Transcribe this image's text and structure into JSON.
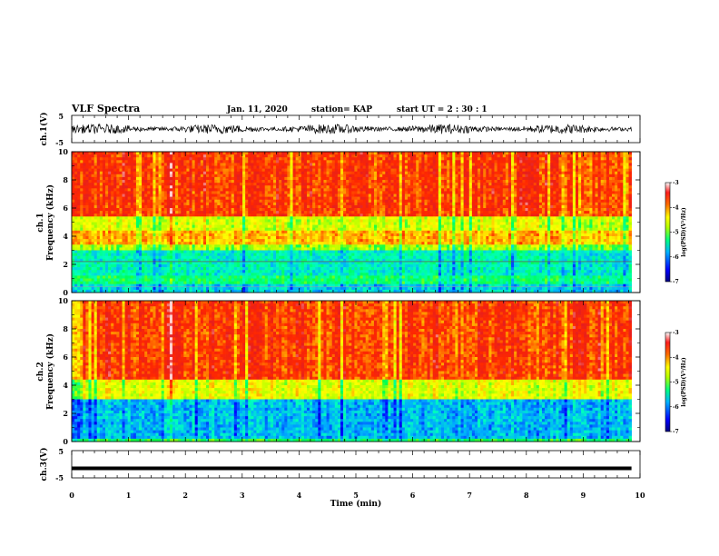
{
  "header": {
    "title": "VLF Spectra",
    "date": "Jan. 11, 2020",
    "station": "station= KAP",
    "start": "start  UT =   2 : 30 : 1"
  },
  "colors": {
    "colormap": [
      "#00007f",
      "#0000ff",
      "#00b4ff",
      "#00ffb0",
      "#00ff3c",
      "#b4ff00",
      "#ffff00",
      "#ffa000",
      "#ff2a00",
      "#e61e1e"
    ],
    "dominant_high": "#ff2a00",
    "dominant_mid": "#ffff00",
    "dominant_low": "#00ff80"
  },
  "chart_data": [
    {
      "type": "line",
      "name": "waveform-ch1",
      "ylabel": "ch.1(V)",
      "ylim": [
        -5,
        5
      ],
      "yticks": [
        "5",
        "-5"
      ],
      "xlim": [
        0,
        10
      ],
      "description_values": {
        "mean_v": 0,
        "amplitude_v_approx": 1.8
      }
    },
    {
      "type": "heatmap",
      "name": "spectrogram-ch1",
      "ylabel": "ch.1\nFrequency (kHz)",
      "ylim": [
        0,
        10
      ],
      "yticks": [
        "0",
        "2",
        "4",
        "6",
        "8",
        "10"
      ],
      "xlim": [
        0,
        9.85
      ],
      "colorbar": {
        "label": "log(PSD)(V²/Hz)",
        "range": [
          -7,
          -3
        ],
        "ticks": [
          "-3",
          "-4",
          "-5",
          "-6",
          "-7"
        ]
      },
      "bands": [
        {
          "f": [
            0,
            0.6
          ],
          "level": -5.8
        },
        {
          "f": [
            0.6,
            1.2
          ],
          "level": -5.3
        },
        {
          "f": [
            1.2,
            3.0
          ],
          "level": -5.6
        },
        {
          "f": [
            3.0,
            3.4
          ],
          "level": -4.8
        },
        {
          "f": [
            3.4,
            4.5
          ],
          "level": -4.1
        },
        {
          "f": [
            4.5,
            5.5
          ],
          "level": -4.6
        },
        {
          "f": [
            5.5,
            10
          ],
          "level": -3.6
        }
      ]
    },
    {
      "type": "heatmap",
      "name": "spectrogram-ch2",
      "ylabel": "ch.2\nFrequency (kHz)",
      "ylim": [
        0,
        10
      ],
      "yticks": [
        "0",
        "2",
        "4",
        "6",
        "8",
        "10"
      ],
      "xlim": [
        0,
        9.85
      ],
      "colorbar": {
        "label": "log(PSD)(V²/Hz)",
        "range": [
          -7,
          -3
        ],
        "ticks": [
          "-3",
          "-4",
          "-5",
          "-6",
          "-7"
        ]
      },
      "bands": [
        {
          "f": [
            0,
            0.3
          ],
          "level": -5.2
        },
        {
          "f": [
            0.3,
            3.0
          ],
          "level": -5.9
        },
        {
          "f": [
            3.0,
            4.5
          ],
          "level": -4.5
        },
        {
          "f": [
            4.5,
            10
          ],
          "level": -3.6
        }
      ]
    },
    {
      "type": "line",
      "name": "waveform-ch3",
      "ylabel": "ch.3(V)",
      "ylim": [
        -5,
        5
      ],
      "yticks": [
        "5",
        "-5"
      ],
      "xlim": [
        0,
        10
      ],
      "series": [
        {
          "x": [
            0,
            9.85
          ],
          "y": [
            -1.5,
            -1.5
          ]
        }
      ]
    }
  ],
  "xaxis": {
    "label": "Time (min)",
    "range": [
      0,
      10
    ],
    "ticks": [
      "0",
      "1",
      "2",
      "3",
      "4",
      "5",
      "6",
      "7",
      "8",
      "9",
      "10"
    ]
  }
}
